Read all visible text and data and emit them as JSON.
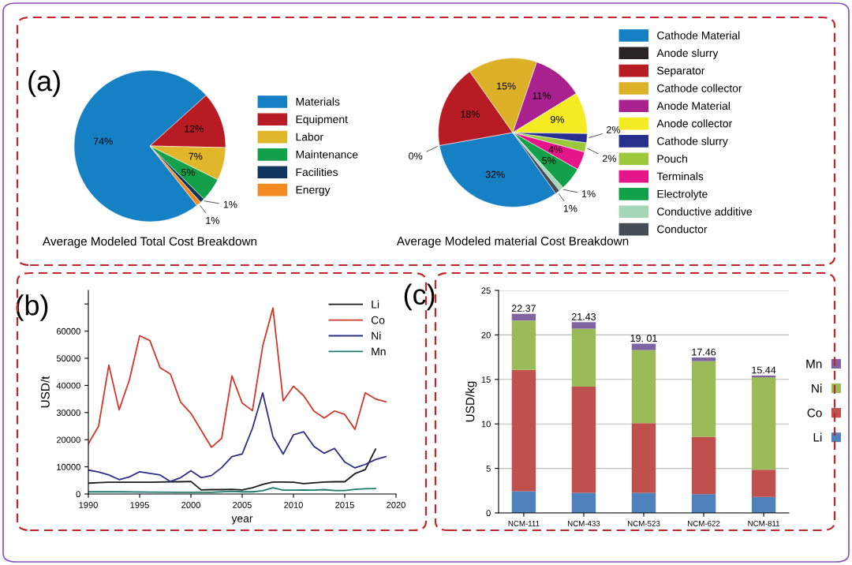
{
  "chart_data": [
    {
      "type": "pie",
      "title": "Average Modeled Total Cost Breakdown",
      "annotations": [
        "(a)"
      ],
      "legend": "right",
      "categories": [
        "Materials",
        "Equipment",
        "Labor",
        "Maintenance",
        "Facilities",
        "Energy"
      ],
      "values": [
        74,
        12,
        7,
        5,
        1,
        1
      ],
      "value_labels": [
        "74%",
        "12%",
        "7%",
        "5%",
        "1%",
        "1%"
      ],
      "colors": [
        "#1580c4",
        "#b71c24",
        "#e0b62a",
        "#12a14a",
        "#10365e",
        "#f28a22"
      ]
    },
    {
      "type": "pie",
      "title": "Average Modeled material Cost Breakdown",
      "legend": "right",
      "categories": [
        "Cathode Material",
        "Anode slurry",
        "Separator",
        "Cathode collector",
        "Anode Material",
        "Anode collector",
        "Cathode slurry",
        "Pouch",
        "Terminals",
        "Electrolyte",
        "Conductive additive",
        "Conductor"
      ],
      "values": [
        32,
        0,
        18,
        15,
        11,
        9,
        2,
        2,
        4,
        5,
        1,
        1
      ],
      "value_labels": [
        "32%",
        "0%",
        "18%",
        "15%",
        "11%",
        "9%",
        "2%",
        "2%",
        "4%",
        "5%",
        "1%",
        "1%"
      ],
      "colors": [
        "#1580c4",
        "#2b2424",
        "#b71c24",
        "#dcb128",
        "#a8218e",
        "#f5eb22",
        "#27318d",
        "#9cc83c",
        "#e5158a",
        "#12a14a",
        "#a3d7b8",
        "#454c55"
      ]
    },
    {
      "type": "line",
      "annotations": [
        "(b)"
      ],
      "xlabel": "year",
      "ylabel": "USD/t",
      "legend": "top right",
      "grid": false,
      "xlim": [
        1990,
        2020
      ],
      "xticks": [
        1990,
        1995,
        2000,
        2005,
        2010,
        2015,
        2020
      ],
      "ylim": [
        0,
        75000
      ],
      "yticks": [
        0,
        10000,
        20000,
        30000,
        40000,
        50000,
        60000,
        {
          "value": 70000,
          "label": null
        }
      ],
      "series": [
        {
          "name": "Li",
          "color": "#1a1a1a",
          "x": [
            1990,
            1991,
            1992,
            1993,
            1994,
            1995,
            1996,
            1997,
            1998,
            1999,
            2000,
            2001,
            2002,
            2003,
            2004,
            2005,
            2006,
            2007,
            2008,
            2009,
            2010,
            2011,
            2012,
            2013,
            2014,
            2015,
            2016,
            2017,
            2018
          ],
          "values": [
            4000,
            4200,
            4300,
            4300,
            4300,
            4300,
            4300,
            4400,
            4500,
            4500,
            4600,
            1500,
            1600,
            1600,
            1700,
            1500,
            2300,
            3500,
            4400,
            4400,
            4300,
            3800,
            4100,
            4400,
            4500,
            4500,
            7500,
            9000,
            16500
          ]
        },
        {
          "name": "Co",
          "color": "#d2382a",
          "x": [
            1990,
            1991,
            1992,
            1993,
            1994,
            1995,
            1996,
            1997,
            1998,
            1999,
            2000,
            2001,
            2002,
            2003,
            2004,
            2005,
            2006,
            2007,
            2008,
            2009,
            2010,
            2011,
            2012,
            2013,
            2014,
            2015,
            2016,
            2017,
            2018,
            2019
          ],
          "values": [
            18500,
            25000,
            47500,
            31000,
            42000,
            58300,
            56500,
            46500,
            44200,
            33800,
            29700,
            23500,
            17200,
            20500,
            43500,
            33500,
            30700,
            54500,
            68500,
            34300,
            39700,
            36200,
            30500,
            28000,
            30600,
            29300,
            23800,
            37300,
            35000,
            34000
          ]
        },
        {
          "name": "Ni",
          "color": "#2b2f86",
          "x": [
            1990,
            1991,
            1992,
            1993,
            1994,
            1995,
            1996,
            1997,
            1998,
            1999,
            2000,
            2001,
            2002,
            2003,
            2004,
            2005,
            2006,
            2007,
            2008,
            2009,
            2010,
            2011,
            2012,
            2013,
            2014,
            2015,
            2016,
            2017,
            2018,
            2019
          ],
          "values": [
            8800,
            8100,
            7000,
            5300,
            6300,
            8200,
            7600,
            7000,
            4600,
            6000,
            8600,
            6000,
            6800,
            9700,
            13800,
            14700,
            24200,
            37200,
            21100,
            14700,
            21800,
            22900,
            17500,
            15000,
            16800,
            11800,
            9600,
            10900,
            12700,
            13800
          ]
        },
        {
          "name": "Mn",
          "color": "#1f7a6b",
          "x": [
            1990,
            1993,
            1996,
            1999,
            2002,
            2004,
            2005,
            2006,
            2007,
            2008,
            2009,
            2010,
            2011,
            2012,
            2013,
            2014,
            2015,
            2016,
            2017,
            2018
          ],
          "values": [
            800,
            800,
            700,
            600,
            600,
            1000,
            800,
            800,
            1200,
            2300,
            1400,
            1400,
            1500,
            1400,
            1600,
            1300,
            1300,
            1700,
            1900,
            2000
          ]
        }
      ]
    },
    {
      "type": "bar",
      "stacked": true,
      "annotations": [
        "(c)"
      ],
      "ylabel": "USD/kg",
      "legend": "right",
      "grid": "y",
      "ylim": [
        0,
        25
      ],
      "yticks": [
        0,
        5,
        10,
        15,
        20,
        25
      ],
      "categories": [
        "NCM-111",
        "NCM-433",
        "NCM-523",
        "NCM-622",
        "NCM-811"
      ],
      "totals": [
        "22.37",
        "21.43",
        "19. 01",
        "17.46",
        "15.44"
      ],
      "series": [
        {
          "name": "Li",
          "color": "#4f81bd",
          "values": [
            2.44,
            2.27,
            2.27,
            2.11,
            1.8
          ]
        },
        {
          "name": "Co",
          "color": "#c0504d",
          "values": [
            13.63,
            11.92,
            7.82,
            6.45,
            3.05
          ]
        },
        {
          "name": "Ni",
          "color": "#9bbb59",
          "values": [
            5.55,
            6.51,
            8.2,
            8.49,
            10.39
          ]
        },
        {
          "name": "Mn",
          "color": "#8064a2",
          "values": [
            0.75,
            0.73,
            0.72,
            0.41,
            0.2
          ]
        }
      ]
    }
  ]
}
